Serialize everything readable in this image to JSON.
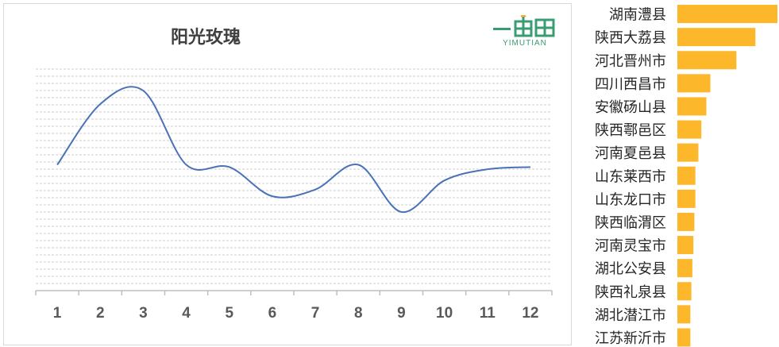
{
  "chart_data": [
    {
      "type": "line",
      "title": "阳光玫瑰",
      "categories": [
        "1",
        "2",
        "3",
        "4",
        "5",
        "6",
        "7",
        "8",
        "9",
        "10",
        "11",
        "12"
      ],
      "values": [
        56,
        83,
        89,
        56,
        55,
        42,
        45,
        56,
        35,
        49,
        54,
        55
      ],
      "ylim": [
        0,
        100
      ],
      "grid": true,
      "color": "#4a72b8"
    },
    {
      "type": "bar",
      "orientation": "horizontal",
      "categories": [
        "湖南澧县",
        "陕西大荔县",
        "河北晋州市",
        "四川西昌市",
        "安徽砀山县",
        "陕西鄠邑区",
        "河南夏邑县",
        "山东莱西市",
        "山东龙口市",
        "陕西临渭区",
        "河南灵宝市",
        "湖北公安县",
        "陕西礼泉县",
        "湖北潜江市",
        "江苏新沂市"
      ],
      "values": [
        100,
        78,
        59,
        33,
        29,
        24,
        21,
        18,
        18,
        17,
        16,
        15,
        14,
        13,
        13
      ],
      "xlim": [
        0,
        100
      ],
      "color": "#fcb72b"
    }
  ],
  "logo": {
    "text": "YIMUTIAN",
    "glyph_text": "一亩田"
  }
}
